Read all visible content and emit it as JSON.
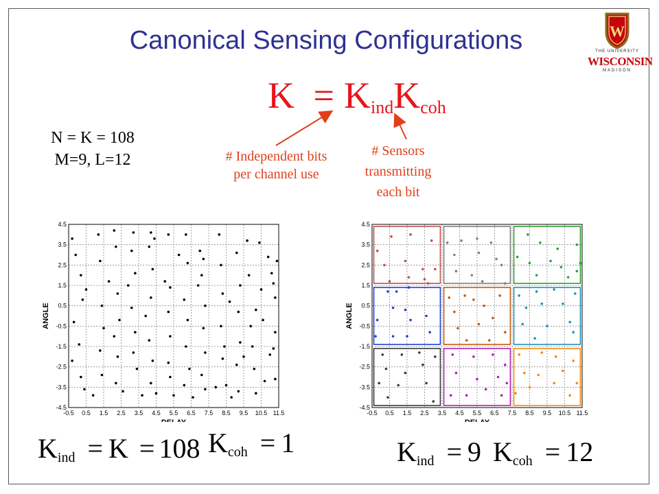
{
  "slide": {
    "title": "Canonical Sensing Configurations",
    "main_equation": {
      "lhs": "K",
      "eq": "=",
      "k1": "K",
      "k1_sub": "ind",
      "k2": "K",
      "k2_sub": "coh"
    },
    "params_line1": "N = K = 108",
    "params_line2": "M=9, L=12",
    "annot_independent": [
      "# Independent bits",
      "per channel use"
    ],
    "annot_sensors": [
      "# Sensors",
      "transmitting",
      "each bit"
    ],
    "logo": {
      "line1": "THE UNIVERSITY",
      "line2": "WISCONSIN",
      "line3": "MADISON",
      "shield_letter": "W"
    },
    "left_eq": {
      "k": "K",
      "sub": "ind",
      "eq1": "=",
      "mid": "K",
      "eq2": "=",
      "val": "108"
    },
    "left_eq2": {
      "k": "K",
      "sub": "coh",
      "eq": "=",
      "val": "1"
    },
    "right_eq": {
      "k": "K",
      "sub": "ind",
      "eq": "=",
      "val": "9"
    },
    "right_eq2": {
      "k": "K",
      "sub": "coh",
      "eq": "=",
      "val": "12"
    },
    "colors": {
      "title": "#2e3192",
      "accent": "#e8141b",
      "annot": "#e0401c"
    }
  },
  "chart_data": [
    {
      "type": "scatter",
      "xlabel": "DELAY",
      "ylabel": "ANGLE",
      "xlim": [
        -0.5,
        11.5
      ],
      "ylim": [
        -4.5,
        4.5
      ],
      "xticks": [
        "-0.5",
        "0.5",
        "1.5",
        "2.5",
        "3.5",
        "4.5",
        "5.5",
        "6.5",
        "7.5",
        "8.5",
        "9.5",
        "10.5",
        "11.5"
      ],
      "yticks": [
        "4.5",
        "3.5",
        "2.5",
        "1.5",
        "0.5",
        "-0.5",
        "-1.5",
        "-2.5",
        "-3.5",
        "-4.5"
      ],
      "grid": true,
      "series": [
        {
          "color": "#000000",
          "points": [
            [
              -0.3,
              3.8
            ],
            [
              -0.1,
              3.0
            ],
            [
              0.2,
              2.0
            ],
            [
              0.3,
              0.8
            ],
            [
              -0.2,
              -0.3
            ],
            [
              0.1,
              -1.4
            ],
            [
              -0.3,
              -2.2
            ],
            [
              0.2,
              -3.0
            ],
            [
              0.4,
              -3.6
            ],
            [
              0.5,
              1.3
            ],
            [
              1.2,
              4.0
            ],
            [
              1.3,
              2.7
            ],
            [
              1.4,
              0.5
            ],
            [
              1.5,
              -0.6
            ],
            [
              1.3,
              -1.7
            ],
            [
              1.4,
              -2.9
            ],
            [
              0.9,
              -3.9
            ],
            [
              1.8,
              1.7
            ],
            [
              2.1,
              4.2
            ],
            [
              2.2,
              3.4
            ],
            [
              2.3,
              1.1
            ],
            [
              2.4,
              -0.2
            ],
            [
              2.1,
              -1.0
            ],
            [
              2.3,
              -2.0
            ],
            [
              2.2,
              -3.3
            ],
            [
              2.6,
              -3.7
            ],
            [
              2.9,
              1.5
            ],
            [
              3.2,
              4.1
            ],
            [
              3.1,
              3.2
            ],
            [
              3.3,
              2.1
            ],
            [
              3.1,
              0.4
            ],
            [
              3.3,
              -0.8
            ],
            [
              3.2,
              -1.8
            ],
            [
              3.4,
              -2.6
            ],
            [
              3.7,
              -3.9
            ],
            [
              3.9,
              0.0
            ],
            [
              4.2,
              4.1
            ],
            [
              4.1,
              3.4
            ],
            [
              4.3,
              2.3
            ],
            [
              4.2,
              0.9
            ],
            [
              4.1,
              -1.2
            ],
            [
              4.3,
              -2.2
            ],
            [
              4.2,
              -3.3
            ],
            [
              4.5,
              -3.8
            ],
            [
              4.4,
              3.8
            ],
            [
              5.0,
              1.7
            ],
            [
              5.2,
              4.0
            ],
            [
              5.3,
              1.4
            ],
            [
              5.2,
              0.2
            ],
            [
              5.3,
              -1.0
            ],
            [
              5.2,
              -2.3
            ],
            [
              5.3,
              -3.0
            ],
            [
              5.5,
              -3.9
            ],
            [
              5.8,
              3.0
            ],
            [
              6.2,
              4.0
            ],
            [
              6.3,
              2.6
            ],
            [
              6.1,
              0.8
            ],
            [
              6.3,
              -0.2
            ],
            [
              6.2,
              -1.5
            ],
            [
              6.4,
              -2.6
            ],
            [
              6.1,
              -3.4
            ],
            [
              6.6,
              -4.0
            ],
            [
              6.9,
              1.5
            ],
            [
              7.0,
              3.2
            ],
            [
              7.2,
              2.8
            ],
            [
              7.1,
              2.0
            ],
            [
              7.3,
              0.5
            ],
            [
              7.2,
              -0.6
            ],
            [
              7.3,
              -1.8
            ],
            [
              7.1,
              -2.9
            ],
            [
              7.3,
              -3.6
            ],
            [
              7.9,
              -3.5
            ],
            [
              8.1,
              4.0
            ],
            [
              8.2,
              2.5
            ],
            [
              8.3,
              1.1
            ],
            [
              8.2,
              -0.5
            ],
            [
              8.4,
              -1.5
            ],
            [
              8.3,
              -2.1
            ],
            [
              8.5,
              -3.4
            ],
            [
              8.8,
              -4.0
            ],
            [
              8.7,
              0.7
            ],
            [
              9.1,
              3.1
            ],
            [
              9.3,
              1.5
            ],
            [
              9.2,
              0.2
            ],
            [
              9.3,
              -1.3
            ],
            [
              9.1,
              -2.4
            ],
            [
              9.2,
              -3.7
            ],
            [
              9.7,
              3.7
            ],
            [
              9.8,
              2.0
            ],
            [
              9.9,
              -0.5
            ],
            [
              10.0,
              -1.5
            ],
            [
              10.1,
              -2.6
            ],
            [
              10.2,
              -3.8
            ],
            [
              10.4,
              3.6
            ],
            [
              10.2,
              0.3
            ],
            [
              10.5,
              1.3
            ],
            [
              10.6,
              -0.2
            ],
            [
              10.9,
              2.9
            ],
            [
              11.0,
              -1.9
            ],
            [
              11.1,
              2.1
            ],
            [
              11.2,
              1.6
            ],
            [
              11.3,
              0.9
            ],
            [
              11.3,
              -0.8
            ],
            [
              11.2,
              -1.6
            ],
            [
              11.3,
              -3.1
            ],
            [
              11.4,
              2.7
            ],
            [
              10.7,
              -3.2
            ],
            [
              9.5,
              -2.0
            ]
          ]
        }
      ]
    },
    {
      "type": "scatter",
      "xlabel": "DELAY",
      "ylabel": "ANGLE",
      "xlim": [
        -0.5,
        11.5
      ],
      "ylim": [
        -4.5,
        4.5
      ],
      "xticks": [
        "-0.5",
        "0.5",
        "1.5",
        "2.5",
        "3.5",
        "4.5",
        "5.5",
        "6.5",
        "7.5",
        "8.5",
        "9.5",
        "10.5",
        "11.5"
      ],
      "yticks": [
        "4.5",
        "3.5",
        "2.5",
        "1.5",
        "0.5",
        "-0.5",
        "-1.5",
        "-2.5",
        "-3.5",
        "-4.5"
      ],
      "grid": true,
      "series": [
        {
          "color": "#c0504d",
          "box": [
            -0.4,
            3.4,
            1.6,
            4.4
          ],
          "points": [
            [
              -0.2,
              3.2
            ],
            [
              0.6,
              3.9
            ],
            [
              1.7,
              4.0
            ],
            [
              2.9,
              3.7
            ],
            [
              0.2,
              2.5
            ],
            [
              1.4,
              2.7
            ],
            [
              2.4,
              2.3
            ],
            [
              0.5,
              1.7
            ],
            [
              2.5,
              1.8
            ],
            [
              3.1,
              2.3
            ],
            [
              1.6,
              1.9
            ],
            [
              2.7,
              1.6
            ]
          ]
        },
        {
          "color": "#7f7f7f",
          "box": [
            3.6,
            7.4,
            1.6,
            4.4
          ],
          "points": [
            [
              3.8,
              3.6
            ],
            [
              4.6,
              3.7
            ],
            [
              5.5,
              3.8
            ],
            [
              6.3,
              3.6
            ],
            [
              4.2,
              3.0
            ],
            [
              5.6,
              3.1
            ],
            [
              6.6,
              2.8
            ],
            [
              4.3,
              2.2
            ],
            [
              5.2,
              2.0
            ],
            [
              6.9,
              2.5
            ],
            [
              5.8,
              1.7
            ],
            [
              7.1,
              1.6
            ]
          ]
        },
        {
          "color": "#2ca02c",
          "box": [
            7.6,
            11.4,
            1.6,
            4.4
          ],
          "points": [
            [
              7.8,
              2.9
            ],
            [
              8.4,
              4.0
            ],
            [
              9.1,
              3.6
            ],
            [
              10.1,
              3.3
            ],
            [
              11.2,
              3.5
            ],
            [
              8.5,
              2.6
            ],
            [
              9.7,
              2.7
            ],
            [
              10.3,
              2.4
            ],
            [
              11.4,
              2.6
            ],
            [
              8.9,
              2.0
            ],
            [
              10.7,
              1.9
            ],
            [
              11.2,
              2.2
            ]
          ]
        },
        {
          "color": "#1f3fd8",
          "box": [
            -0.4,
            3.4,
            -1.4,
            1.4
          ],
          "points": [
            [
              0.4,
              1.2
            ],
            [
              0.9,
              1.2
            ],
            [
              1.6,
              1.4
            ],
            [
              0.7,
              0.4
            ],
            [
              1.4,
              0.3
            ],
            [
              2.6,
              0.0
            ],
            [
              -0.2,
              -0.2
            ],
            [
              1.7,
              -0.2
            ],
            [
              2.8,
              -0.8
            ],
            [
              -0.3,
              -1.0
            ],
            [
              0.7,
              -1.0
            ],
            [
              1.5,
              -1.0
            ]
          ]
        },
        {
          "color": "#c55a11",
          "box": [
            3.6,
            7.4,
            -1.4,
            1.4
          ],
          "points": [
            [
              3.9,
              0.9
            ],
            [
              4.8,
              1.0
            ],
            [
              5.3,
              0.8
            ],
            [
              6.8,
              1.0
            ],
            [
              4.2,
              0.2
            ],
            [
              5.9,
              0.5
            ],
            [
              6.4,
              -0.1
            ],
            [
              4.4,
              -0.6
            ],
            [
              5.6,
              -0.4
            ],
            [
              7.1,
              -0.8
            ],
            [
              4.9,
              -1.2
            ],
            [
              6.2,
              -1.2
            ]
          ]
        },
        {
          "color": "#1f8fc0",
          "box": [
            7.6,
            11.4,
            -1.4,
            1.4
          ],
          "points": [
            [
              7.9,
              1.0
            ],
            [
              8.9,
              1.2
            ],
            [
              9.9,
              1.3
            ],
            [
              11.1,
              1.1
            ],
            [
              8.3,
              0.4
            ],
            [
              9.2,
              0.6
            ],
            [
              10.4,
              0.6
            ],
            [
              8.1,
              -0.4
            ],
            [
              9.5,
              -0.5
            ],
            [
              10.8,
              -0.3
            ],
            [
              8.8,
              -1.1
            ],
            [
              11.0,
              -0.8
            ]
          ]
        },
        {
          "color": "#3a3a3a",
          "box": [
            -0.4,
            3.4,
            -4.4,
            -1.6
          ],
          "points": [
            [
              0.1,
              -1.9
            ],
            [
              1.2,
              -1.9
            ],
            [
              2.2,
              -1.8
            ],
            [
              3.1,
              -2.0
            ],
            [
              0.3,
              -2.6
            ],
            [
              1.4,
              -2.8
            ],
            [
              2.4,
              -2.4
            ],
            [
              -0.1,
              -3.3
            ],
            [
              1.0,
              -3.4
            ],
            [
              2.6,
              -3.3
            ],
            [
              0.4,
              -4.0
            ],
            [
              3.0,
              -4.2
            ]
          ]
        },
        {
          "color": "#b01fb4",
          "box": [
            3.6,
            7.4,
            -4.4,
            -1.6
          ],
          "points": [
            [
              4.1,
              -1.9
            ],
            [
              5.3,
              -2.0
            ],
            [
              6.4,
              -1.9
            ],
            [
              7.1,
              -2.4
            ],
            [
              4.3,
              -2.8
            ],
            [
              5.5,
              -3.1
            ],
            [
              6.7,
              -3.0
            ],
            [
              4.0,
              -3.9
            ],
            [
              4.9,
              -3.9
            ],
            [
              6.0,
              -3.6
            ],
            [
              6.9,
              -3.9
            ],
            [
              7.2,
              -3.3
            ]
          ]
        },
        {
          "color": "#f28a0c",
          "box": [
            7.6,
            11.4,
            -4.4,
            -1.6
          ],
          "points": [
            [
              7.9,
              -1.9
            ],
            [
              9.2,
              -1.8
            ],
            [
              10.0,
              -2.0
            ],
            [
              11.0,
              -2.2
            ],
            [
              8.2,
              -2.8
            ],
            [
              9.0,
              -2.9
            ],
            [
              10.4,
              -2.7
            ],
            [
              8.5,
              -3.5
            ],
            [
              9.9,
              -3.3
            ],
            [
              11.2,
              -3.3
            ],
            [
              7.7,
              -3.8
            ],
            [
              10.8,
              -3.9
            ]
          ]
        }
      ]
    }
  ]
}
